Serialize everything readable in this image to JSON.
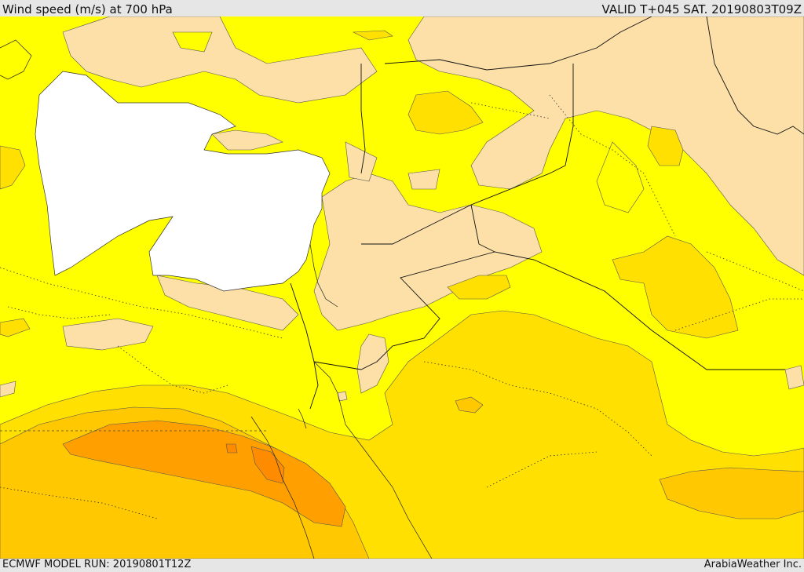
{
  "header": {
    "title": "Wind speed (m/s) at 700 hPa",
    "valid_time": "VALID T+045 SAT. 20190803T09Z"
  },
  "footer": {
    "model_run": "ECMWF MODEL RUN: 20190801T12Z",
    "credit": "ArabiaWeather Inc."
  },
  "map": {
    "palette": {
      "band_1": "#fce0a8",
      "band_2": "#ffff00",
      "band_3": "#ffe000",
      "band_4": "#ffc800",
      "band_5": "#ffa000",
      "band_6": "#ff8c00",
      "no_data": "#ffffff"
    }
  }
}
